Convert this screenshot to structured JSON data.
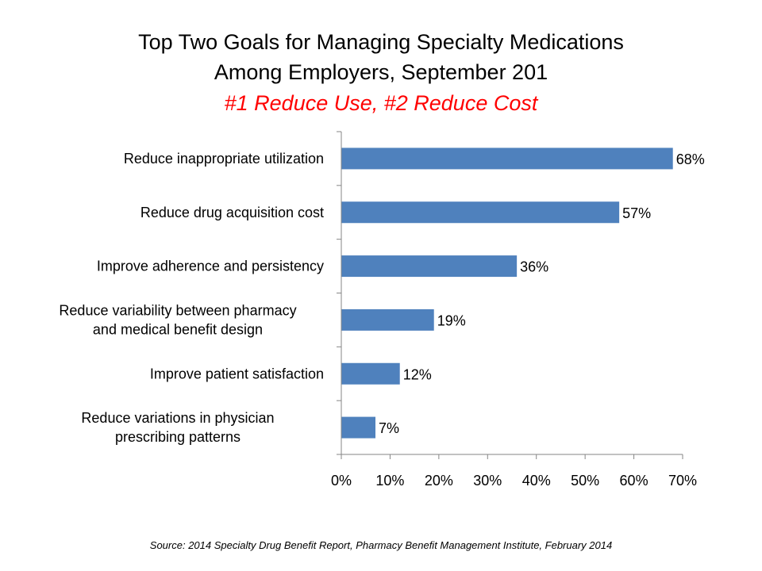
{
  "chart_data": {
    "type": "bar",
    "orientation": "horizontal",
    "title": "Top Two Goals for Managing Specialty Medications",
    "title_line2": "Among Employers, September 201",
    "subtitle": "#1 Reduce Use, #2 Reduce Cost",
    "categories": [
      [
        "Reduce inappropriate utilization"
      ],
      [
        "Reduce drug acquisition cost"
      ],
      [
        "Improve adherence and persistency"
      ],
      [
        "Reduce variability between pharmacy",
        "and medical benefit design"
      ],
      [
        "Improve patient satisfaction"
      ],
      [
        "Reduce variations in physician",
        "prescribing patterns"
      ]
    ],
    "values": [
      68,
      57,
      36,
      19,
      12,
      7
    ],
    "data_labels": [
      "68%",
      "57%",
      "36%",
      "19%",
      "12%",
      "7%"
    ],
    "xlim": [
      0,
      70
    ],
    "xticks": [
      0,
      10,
      20,
      30,
      40,
      50,
      60,
      70
    ],
    "xtick_labels": [
      "0%",
      "10%",
      "20%",
      "30%",
      "40%",
      "50%",
      "60%",
      "70%"
    ],
    "xlabel": "",
    "ylabel": "",
    "grid": false,
    "legend": "none",
    "bar_color": "#4f81bd",
    "axis_color": "#868686",
    "subtitle_color": "#ff0000",
    "source": "Source: 2014 Specialty Drug Benefit Report, Pharmacy Benefit Management Institute, February 2014"
  }
}
